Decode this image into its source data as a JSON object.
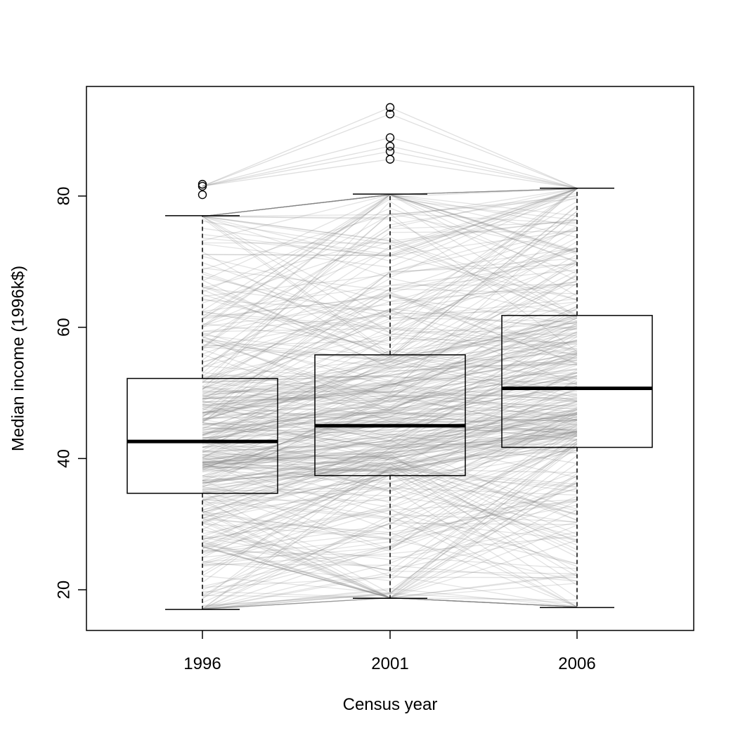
{
  "chart_data": {
    "type": "boxplot",
    "title": "",
    "xlabel": "Census year",
    "ylabel": "Median income (1996k$)",
    "categories": [
      "1996",
      "2001",
      "2006"
    ],
    "ylim": [
      13.8,
      96.7
    ],
    "y_ticks": [
      20,
      40,
      60,
      80
    ],
    "y_tick_labels": [
      "20",
      "40",
      "60",
      "80"
    ],
    "grid": false,
    "legend": "none",
    "boxes": [
      {
        "category": "1996",
        "whisker_low": 17.0,
        "q1": 34.7,
        "median": 42.6,
        "q3": 52.2,
        "whisker_high": 77.0,
        "outliers": [
          80.2,
          81.5,
          81.8
        ]
      },
      {
        "category": "2001",
        "whisker_low": 18.7,
        "q1": 37.4,
        "median": 45.0,
        "q3": 55.8,
        "whisker_high": 80.3,
        "outliers": [
          85.6,
          86.8,
          87.6,
          88.9,
          92.5,
          93.5
        ]
      },
      {
        "category": "2006",
        "whisker_low": 17.3,
        "q1": 41.7,
        "median": 50.7,
        "q3": 61.8,
        "whisker_high": 81.2,
        "outliers": []
      }
    ],
    "trajectories_note": "",
    "colors": {
      "box": "#000000",
      "trajectory": "#808080"
    }
  }
}
